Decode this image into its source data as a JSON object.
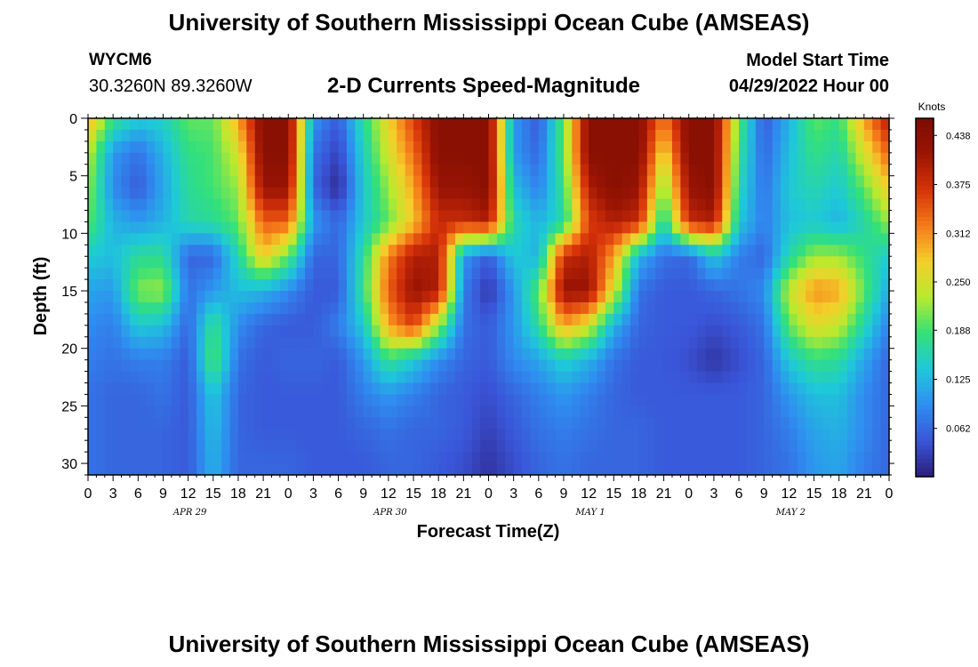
{
  "page": {
    "title": "University of Southern Mississippi Ocean Cube (AMSEAS)",
    "bottom_title": "University of Southern Mississippi Ocean Cube (AMSEAS)",
    "station": "WYCM6",
    "coordinates": "30.3260N  89.3260W",
    "model_start_label": "Model Start Time",
    "model_start_value": "04/29/2022 Hour 00"
  },
  "colors": {
    "scale": [
      "#2c1d7a",
      "#3a55d8",
      "#2f8ef0",
      "#1ec9d8",
      "#33e07a",
      "#b8ea2e",
      "#f4cf2a",
      "#f57a1a",
      "#d6330a",
      "#9c1504",
      "#7a0c02"
    ]
  },
  "chart_data": {
    "type": "heatmap",
    "title": "2-D Currents Speed-Magnitude",
    "xlabel": "Forecast Time(Z)",
    "ylabel": "Depth (ft)",
    "colorbar_label": "Knots",
    "colorbar_ticks": [
      "0.438",
      "0.375",
      "0.312",
      "0.250",
      "0.188",
      "0.125",
      "0.062"
    ],
    "colorbar_range": [
      0.0,
      0.46
    ],
    "xlim": [
      0,
      96
    ],
    "ylim": [
      0,
      31
    ],
    "x_ticks": [
      0,
      3,
      6,
      9,
      12,
      15,
      18,
      21,
      24,
      27,
      30,
      33,
      36,
      39,
      42,
      45,
      48,
      51,
      54,
      57,
      60,
      63,
      66,
      69,
      72,
      75,
      78,
      81,
      84,
      87,
      90,
      93,
      96
    ],
    "x_tick_labels": [
      "0",
      "3",
      "6",
      "9",
      "12",
      "15",
      "18",
      "21",
      "0",
      "3",
      "6",
      "9",
      "12",
      "15",
      "18",
      "21",
      "0",
      "3",
      "6",
      "9",
      "12",
      "15",
      "18",
      "21",
      "0",
      "3",
      "6",
      "9",
      "12",
      "15",
      "18",
      "21",
      "0"
    ],
    "y_ticks": [
      0,
      5,
      10,
      15,
      20,
      25,
      30
    ],
    "y_tick_labels": [
      "0",
      "5",
      "10",
      "15",
      "20",
      "25",
      "30"
    ],
    "date_labels": [
      {
        "hour": 12,
        "label": "APR 29"
      },
      {
        "hour": 36,
        "label": "APR 30"
      },
      {
        "hour": 60,
        "label": "MAY 1"
      },
      {
        "hour": 84,
        "label": "MAY 2"
      }
    ],
    "depth_levels": [
      0,
      3,
      6,
      9,
      12,
      15,
      18,
      21,
      24,
      27,
      30
    ],
    "hours": [
      0,
      3,
      6,
      9,
      12,
      15,
      18,
      21,
      24,
      27,
      30,
      33,
      36,
      39,
      42,
      45,
      48,
      51,
      54,
      57,
      60,
      63,
      66,
      69,
      72,
      75,
      78,
      81,
      84,
      87,
      90,
      93,
      96
    ],
    "speed_knots": [
      [
        0.3,
        0.18,
        0.14,
        0.15,
        0.2,
        0.2,
        0.3,
        0.44,
        0.44,
        0.1,
        0.05,
        0.17,
        0.27,
        0.36,
        0.44,
        0.44,
        0.44,
        0.1,
        0.05,
        0.2,
        0.44,
        0.44,
        0.44,
        0.32,
        0.44,
        0.44,
        0.2,
        0.05,
        0.12,
        0.2,
        0.18,
        0.3,
        0.4
      ],
      [
        0.24,
        0.1,
        0.07,
        0.12,
        0.18,
        0.19,
        0.25,
        0.44,
        0.44,
        0.07,
        0.03,
        0.15,
        0.25,
        0.33,
        0.44,
        0.44,
        0.44,
        0.1,
        0.06,
        0.2,
        0.44,
        0.44,
        0.44,
        0.26,
        0.44,
        0.44,
        0.18,
        0.06,
        0.13,
        0.18,
        0.16,
        0.25,
        0.34
      ],
      [
        0.22,
        0.09,
        0.05,
        0.11,
        0.17,
        0.19,
        0.22,
        0.42,
        0.42,
        0.06,
        0.01,
        0.14,
        0.22,
        0.3,
        0.42,
        0.42,
        0.44,
        0.13,
        0.08,
        0.18,
        0.4,
        0.44,
        0.42,
        0.2,
        0.42,
        0.44,
        0.16,
        0.07,
        0.14,
        0.16,
        0.14,
        0.2,
        0.28
      ],
      [
        0.2,
        0.12,
        0.1,
        0.12,
        0.16,
        0.17,
        0.2,
        0.34,
        0.34,
        0.1,
        0.06,
        0.14,
        0.2,
        0.28,
        0.38,
        0.38,
        0.4,
        0.16,
        0.12,
        0.16,
        0.36,
        0.4,
        0.38,
        0.15,
        0.38,
        0.4,
        0.14,
        0.08,
        0.13,
        0.14,
        0.12,
        0.16,
        0.22
      ],
      [
        0.14,
        0.13,
        0.17,
        0.17,
        0.06,
        0.06,
        0.16,
        0.28,
        0.2,
        0.06,
        0.06,
        0.17,
        0.32,
        0.4,
        0.4,
        0.1,
        0.05,
        0.14,
        0.12,
        0.38,
        0.4,
        0.3,
        0.12,
        0.07,
        0.06,
        0.14,
        0.08,
        0.06,
        0.16,
        0.22,
        0.22,
        0.18,
        0.14
      ],
      [
        0.11,
        0.1,
        0.21,
        0.22,
        0.07,
        0.1,
        0.13,
        0.12,
        0.09,
        0.05,
        0.05,
        0.18,
        0.34,
        0.42,
        0.4,
        0.08,
        0.02,
        0.1,
        0.2,
        0.42,
        0.42,
        0.25,
        0.07,
        0.05,
        0.05,
        0.06,
        0.07,
        0.09,
        0.24,
        0.31,
        0.3,
        0.2,
        0.11
      ],
      [
        0.09,
        0.08,
        0.14,
        0.13,
        0.06,
        0.18,
        0.09,
        0.06,
        0.05,
        0.05,
        0.08,
        0.14,
        0.3,
        0.36,
        0.22,
        0.07,
        0.05,
        0.1,
        0.17,
        0.3,
        0.25,
        0.12,
        0.06,
        0.05,
        0.05,
        0.04,
        0.05,
        0.07,
        0.2,
        0.26,
        0.24,
        0.16,
        0.08
      ],
      [
        0.08,
        0.07,
        0.08,
        0.08,
        0.05,
        0.2,
        0.07,
        0.05,
        0.06,
        0.06,
        0.05,
        0.1,
        0.18,
        0.14,
        0.09,
        0.06,
        0.05,
        0.09,
        0.11,
        0.15,
        0.12,
        0.07,
        0.05,
        0.05,
        0.04,
        0.02,
        0.04,
        0.06,
        0.14,
        0.18,
        0.17,
        0.11,
        0.06
      ],
      [
        0.07,
        0.06,
        0.06,
        0.07,
        0.05,
        0.14,
        0.06,
        0.05,
        0.05,
        0.05,
        0.05,
        0.08,
        0.1,
        0.08,
        0.06,
        0.05,
        0.04,
        0.06,
        0.08,
        0.1,
        0.08,
        0.06,
        0.05,
        0.05,
        0.05,
        0.05,
        0.05,
        0.06,
        0.1,
        0.13,
        0.13,
        0.09,
        0.06
      ],
      [
        0.07,
        0.06,
        0.06,
        0.06,
        0.05,
        0.13,
        0.06,
        0.05,
        0.05,
        0.05,
        0.05,
        0.06,
        0.07,
        0.06,
        0.06,
        0.05,
        0.03,
        0.05,
        0.07,
        0.08,
        0.07,
        0.06,
        0.06,
        0.05,
        0.05,
        0.05,
        0.05,
        0.06,
        0.08,
        0.11,
        0.12,
        0.09,
        0.06
      ],
      [
        0.07,
        0.06,
        0.06,
        0.06,
        0.05,
        0.12,
        0.06,
        0.06,
        0.06,
        0.05,
        0.05,
        0.05,
        0.06,
        0.06,
        0.05,
        0.04,
        0.02,
        0.04,
        0.06,
        0.07,
        0.06,
        0.06,
        0.06,
        0.05,
        0.05,
        0.05,
        0.05,
        0.06,
        0.07,
        0.1,
        0.11,
        0.08,
        0.06
      ]
    ]
  }
}
